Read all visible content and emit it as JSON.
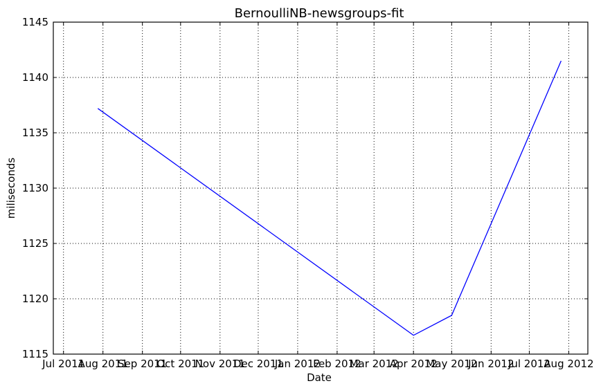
{
  "chart_data": {
    "type": "line",
    "title": "BernoulliNB-newsgroups-fit",
    "xlabel": "Date",
    "ylabel": "miliseconds",
    "x_ticks": [
      "Jul 2011",
      "Aug 2011",
      "Sep 2011",
      "Oct 2011",
      "Nov 2011",
      "Dec 2011",
      "Jan 2012",
      "Feb 2012",
      "Mar 2012",
      "Apr 2012",
      "May 2012",
      "Jun 2012",
      "Jul 2012",
      "Aug 2012"
    ],
    "y_ticks": [
      1115,
      1120,
      1125,
      1130,
      1135,
      1140,
      1145
    ],
    "xlim": [
      "2011-06-23",
      "2012-08-16"
    ],
    "ylim": [
      1115,
      1145
    ],
    "grid": true,
    "color": "#0000ff",
    "series": [
      {
        "x": [
          "2011-07-28",
          "2012-04-01",
          "2012-05-01",
          "2012-07-26"
        ],
        "values": [
          1137.2,
          1116.7,
          1118.5,
          1141.5
        ]
      }
    ]
  }
}
